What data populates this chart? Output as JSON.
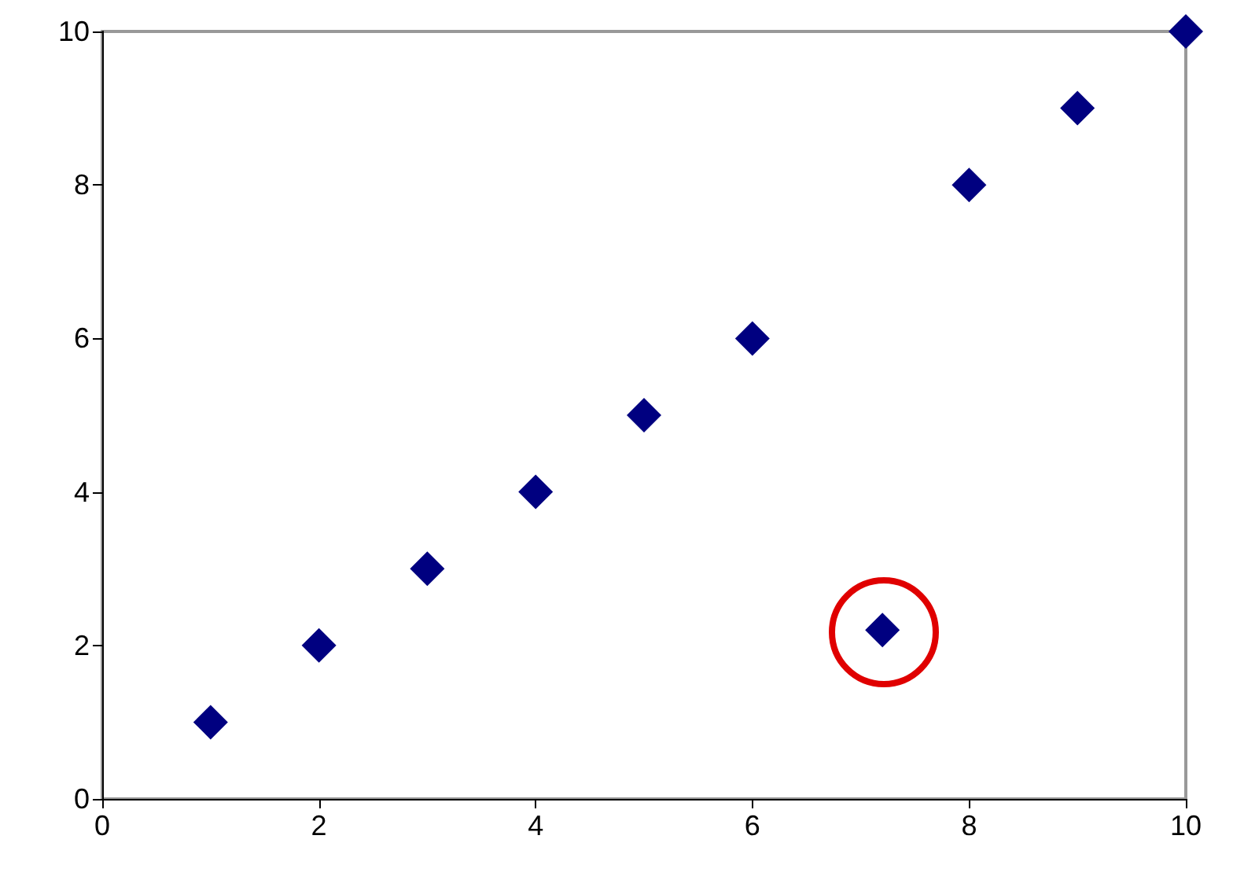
{
  "chart_data": {
    "type": "scatter",
    "x": [
      1,
      2,
      3,
      4,
      5,
      6,
      7.2,
      8,
      9,
      10
    ],
    "series": [
      {
        "color": "#000080",
        "values": [
          1,
          2,
          3,
          4,
          5,
          6,
          2.2,
          8,
          9,
          10
        ]
      }
    ],
    "xlim": [
      0,
      10
    ],
    "ylim": [
      0,
      10
    ],
    "xticks": [
      0,
      2,
      4,
      6,
      8,
      10
    ],
    "yticks": [
      0,
      2,
      4,
      6,
      8,
      10
    ],
    "grid": false,
    "marker": "diamond"
  }
}
